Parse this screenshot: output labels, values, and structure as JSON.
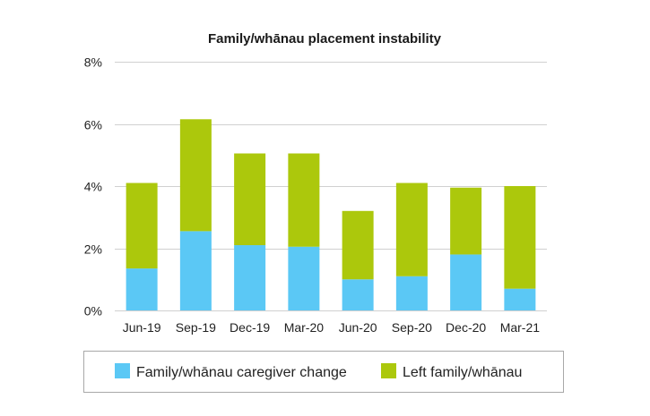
{
  "chart_data": {
    "type": "bar",
    "stacked": true,
    "title": "Family/whānau placement instability",
    "xlabel": "",
    "ylabel": "",
    "categories": [
      "Jun-19",
      "Sep-19",
      "Dec-19",
      "Mar-20",
      "Jun-20",
      "Sep-20",
      "Dec-20",
      "Mar-21"
    ],
    "series": [
      {
        "name": "Family/whānau caregiver change",
        "color": "#5bc8f5",
        "values": [
          1.35,
          2.55,
          2.1,
          2.05,
          1.0,
          1.1,
          1.8,
          0.7
        ]
      },
      {
        "name": "Left family/whānau",
        "color": "#acc80c",
        "values": [
          2.75,
          3.6,
          2.95,
          3.0,
          2.2,
          3.0,
          2.15,
          3.3
        ]
      }
    ],
    "ylim": [
      0,
      8
    ],
    "yticks": [
      "0%",
      "2%",
      "4%",
      "6%",
      "8%"
    ],
    "ytick_values": [
      0,
      2,
      4,
      6,
      8
    ],
    "grid": true,
    "legend_position": "bottom"
  }
}
